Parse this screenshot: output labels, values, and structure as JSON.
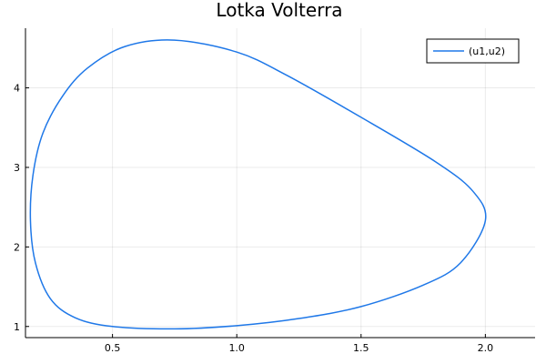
{
  "chart_data": {
    "type": "line",
    "title": "Lotka Volterra",
    "xlabel": "",
    "ylabel": "",
    "xlim": [
      0.15,
      2.2
    ],
    "ylim": [
      0.86,
      4.75
    ],
    "x_ticks": [
      0.5,
      1.0,
      1.5,
      2.0
    ],
    "x_tick_labels": [
      "0.5",
      "1.0",
      "1.5",
      "2.0"
    ],
    "y_ticks": [
      1,
      2,
      3,
      4
    ],
    "y_tick_labels": [
      "1",
      "2",
      "3",
      "4"
    ],
    "grid": true,
    "legend_position": "top-right",
    "series": [
      {
        "name": "(u1,u2)",
        "color": "#1f78e8",
        "x": [
          1.0,
          1.25,
          1.5,
          1.75,
          1.9,
          2.0,
          1.95,
          1.8,
          1.5,
          1.2,
          1.0,
          0.75,
          0.55,
          0.4,
          0.3,
          0.22,
          0.18,
          0.17,
          0.19,
          0.25,
          0.35,
          0.5,
          0.75,
          1.0
        ],
        "y": [
          1.01,
          1.1,
          1.25,
          1.52,
          1.8,
          2.33,
          2.7,
          3.07,
          3.63,
          4.16,
          4.45,
          4.6,
          4.52,
          4.25,
          3.9,
          3.43,
          2.9,
          2.33,
          1.8,
          1.35,
          1.11,
          1.0,
          0.97,
          1.01
        ]
      }
    ]
  }
}
